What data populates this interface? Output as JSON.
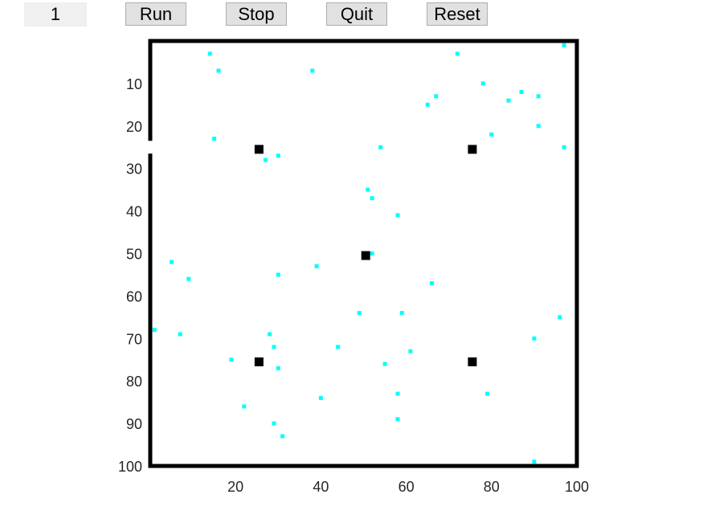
{
  "toolbar": {
    "counter": "1",
    "run_label": "Run",
    "stop_label": "Stop",
    "quit_label": "Quit",
    "reset_label": "Reset"
  },
  "chart_data": {
    "type": "scatter",
    "title": "",
    "xlabel": "",
    "ylabel": "",
    "xlim": [
      0,
      100
    ],
    "ylim": [
      0,
      100
    ],
    "y_axis_reversed": true,
    "grid": false,
    "x_ticks": [
      20,
      40,
      60,
      80,
      100
    ],
    "y_ticks": [
      10,
      20,
      30,
      40,
      50,
      60,
      70,
      80,
      90,
      100
    ],
    "frame_color": "#000000",
    "series": [
      {
        "color": "#00ffff",
        "marker": "small-square",
        "points": [
          [
            14,
            3
          ],
          [
            16,
            7
          ],
          [
            38,
            7
          ],
          [
            72,
            3
          ],
          [
            97,
            1
          ],
          [
            78,
            10
          ],
          [
            67,
            13
          ],
          [
            65,
            15
          ],
          [
            84,
            14
          ],
          [
            87,
            12
          ],
          [
            91,
            13
          ],
          [
            15,
            23
          ],
          [
            80,
            22
          ],
          [
            91,
            20
          ],
          [
            97,
            25
          ],
          [
            54,
            25
          ],
          [
            30,
            27
          ],
          [
            27,
            28
          ],
          [
            51,
            35
          ],
          [
            52,
            37
          ],
          [
            58,
            41
          ],
          [
            5,
            52
          ],
          [
            9,
            56
          ],
          [
            30,
            55
          ],
          [
            39,
            53
          ],
          [
            52,
            50
          ],
          [
            66,
            57
          ],
          [
            49,
            64
          ],
          [
            59,
            64
          ],
          [
            96,
            65
          ],
          [
            1,
            68
          ],
          [
            7,
            69
          ],
          [
            28,
            69
          ],
          [
            29,
            72
          ],
          [
            44,
            72
          ],
          [
            61,
            73
          ],
          [
            90,
            70
          ],
          [
            19,
            75
          ],
          [
            30,
            77
          ],
          [
            55,
            76
          ],
          [
            40,
            84
          ],
          [
            58,
            83
          ],
          [
            79,
            83
          ],
          [
            22,
            86
          ],
          [
            29,
            90
          ],
          [
            58,
            89
          ],
          [
            31,
            93
          ],
          [
            90,
            99
          ]
        ]
      },
      {
        "color": "#000000",
        "marker": "large-square",
        "points": [
          [
            25.5,
            25.5
          ],
          [
            75.5,
            25.5
          ],
          [
            50.5,
            50.5
          ],
          [
            25.5,
            75.5
          ],
          [
            75.5,
            75.5
          ]
        ]
      }
    ]
  }
}
